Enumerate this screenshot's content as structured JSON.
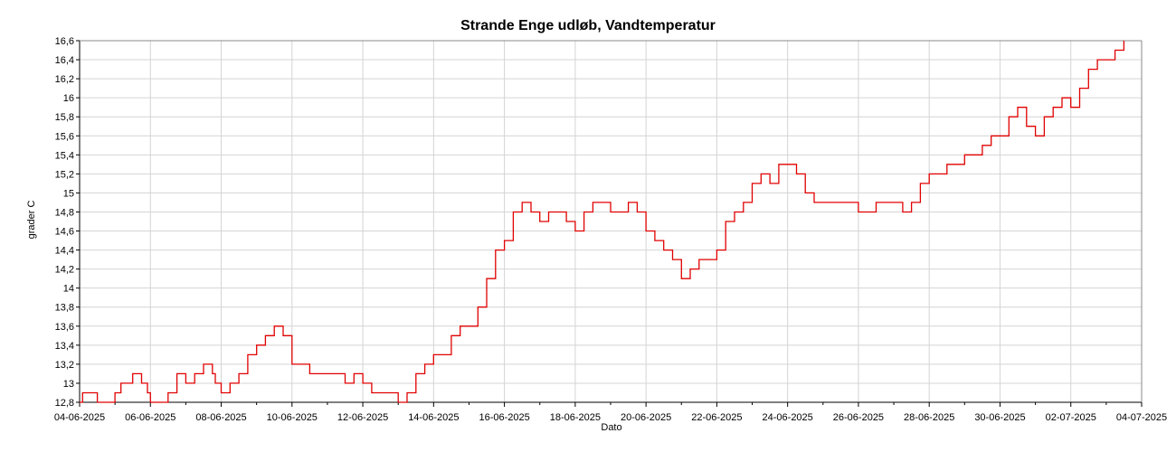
{
  "chart_data": {
    "type": "line",
    "title": "Strande Enge udløb, Vandtemperatur",
    "xlabel": "Dato",
    "ylabel": "grader C",
    "xlim": [
      "2025-06-04",
      "2025-07-04"
    ],
    "ylim": [
      12.8,
      16.6
    ],
    "grid": true,
    "legend": "none",
    "x_tick_labels": [
      "04-06-2025",
      "06-06-2025",
      "08-06-2025",
      "10-06-2025",
      "12-06-2025",
      "14-06-2025",
      "16-06-2025",
      "18-06-2025",
      "20-06-2025",
      "22-06-2025",
      "24-06-2025",
      "26-06-2025",
      "28-06-2025",
      "30-06-2025",
      "02-07-2025",
      "04-07-2025"
    ],
    "y_tick_labels": [
      "12,8",
      "13",
      "13,2",
      "13,4",
      "13,6",
      "13,8",
      "14",
      "14,2",
      "14,4",
      "14,6",
      "14,8",
      "15",
      "15,2",
      "15,4",
      "15,6",
      "15,8",
      "16",
      "16,2",
      "16,4",
      "16,6"
    ],
    "line_color": "#e00000",
    "series": [
      {
        "x": [
          "2025-06-04 00:00",
          "2025-06-04 02:00",
          "2025-06-04 08:00",
          "2025-06-04 12:00",
          "2025-06-04 18:00",
          "2025-06-05 00:00",
          "2025-06-05 04:00",
          "2025-06-05 12:00",
          "2025-06-05 14:00",
          "2025-06-05 18:00",
          "2025-06-05 22:00",
          "2025-06-06 00:00",
          "2025-06-06 06:00",
          "2025-06-06 12:00",
          "2025-06-06 18:00",
          "2025-06-06 20:00",
          "2025-06-07 00:00",
          "2025-06-07 06:00",
          "2025-06-07 12:00",
          "2025-06-07 18:00",
          "2025-06-07 20:00",
          "2025-06-08 00:00",
          "2025-06-08 06:00",
          "2025-06-08 12:00",
          "2025-06-08 18:00",
          "2025-06-09 00:00",
          "2025-06-09 06:00",
          "2025-06-09 12:00",
          "2025-06-09 14:00",
          "2025-06-09 18:00",
          "2025-06-10 00:00",
          "2025-06-10 12:00",
          "2025-06-11 00:00",
          "2025-06-11 06:00",
          "2025-06-11 12:00",
          "2025-06-11 18:00",
          "2025-06-12 00:00",
          "2025-06-12 06:00",
          "2025-06-12 12:00",
          "2025-06-12 18:00",
          "2025-06-13 00:00",
          "2025-06-13 06:00",
          "2025-06-13 12:00",
          "2025-06-13 18:00",
          "2025-06-14 00:00",
          "2025-06-14 06:00",
          "2025-06-14 12:00",
          "2025-06-14 18:00",
          "2025-06-15 00:00",
          "2025-06-15 06:00",
          "2025-06-15 12:00",
          "2025-06-15 18:00",
          "2025-06-16 00:00",
          "2025-06-16 06:00",
          "2025-06-16 12:00",
          "2025-06-16 18:00",
          "2025-06-17 00:00",
          "2025-06-17 06:00",
          "2025-06-17 12:00",
          "2025-06-17 18:00",
          "2025-06-18 00:00",
          "2025-06-18 06:00",
          "2025-06-18 12:00",
          "2025-06-18 18:00",
          "2025-06-19 00:00",
          "2025-06-19 06:00",
          "2025-06-19 12:00",
          "2025-06-19 18:00",
          "2025-06-20 00:00",
          "2025-06-20 06:00",
          "2025-06-20 12:00",
          "2025-06-20 18:00",
          "2025-06-21 00:00",
          "2025-06-21 06:00",
          "2025-06-21 12:00",
          "2025-06-21 18:00",
          "2025-06-22 00:00",
          "2025-06-22 06:00",
          "2025-06-22 12:00",
          "2025-06-22 18:00",
          "2025-06-23 00:00",
          "2025-06-23 06:00",
          "2025-06-23 12:00",
          "2025-06-23 18:00",
          "2025-06-24 00:00",
          "2025-06-24 06:00",
          "2025-06-24 12:00",
          "2025-06-24 18:00",
          "2025-06-25 00:00",
          "2025-06-25 12:00",
          "2025-06-26 00:00",
          "2025-06-26 12:00",
          "2025-06-27 00:00",
          "2025-06-27 06:00",
          "2025-06-27 12:00",
          "2025-06-27 18:00",
          "2025-06-28 00:00",
          "2025-06-28 12:00",
          "2025-06-29 00:00",
          "2025-06-29 06:00",
          "2025-06-29 12:00",
          "2025-06-29 18:00",
          "2025-06-30 00:00",
          "2025-06-30 06:00",
          "2025-06-30 12:00",
          "2025-06-30 18:00",
          "2025-07-01 00:00",
          "2025-07-01 06:00",
          "2025-07-01 12:00",
          "2025-07-01 18:00",
          "2025-07-02 00:00",
          "2025-07-02 06:00",
          "2025-07-02 12:00",
          "2025-07-02 18:00",
          "2025-07-03 00:00",
          "2025-07-03 06:00",
          "2025-07-03 12:00"
        ],
        "y": [
          12.8,
          12.9,
          12.9,
          12.8,
          12.8,
          12.9,
          13.0,
          13.1,
          13.1,
          13.0,
          12.9,
          12.8,
          12.8,
          12.9,
          13.1,
          13.1,
          13.0,
          13.1,
          13.2,
          13.1,
          13.0,
          12.9,
          13.0,
          13.1,
          13.3,
          13.4,
          13.5,
          13.6,
          13.6,
          13.5,
          13.2,
          13.1,
          13.1,
          13.1,
          13.0,
          13.1,
          13.0,
          12.9,
          12.9,
          12.9,
          12.8,
          12.9,
          13.1,
          13.2,
          13.3,
          13.3,
          13.5,
          13.6,
          13.6,
          13.8,
          14.1,
          14.4,
          14.5,
          14.8,
          14.9,
          14.8,
          14.7,
          14.8,
          14.8,
          14.7,
          14.6,
          14.8,
          14.9,
          14.9,
          14.8,
          14.8,
          14.9,
          14.8,
          14.6,
          14.5,
          14.4,
          14.3,
          14.1,
          14.2,
          14.3,
          14.3,
          14.4,
          14.7,
          14.8,
          14.9,
          15.1,
          15.2,
          15.1,
          15.3,
          15.3,
          15.2,
          15.0,
          14.9,
          14.9,
          14.9,
          14.8,
          14.9,
          14.9,
          14.8,
          14.9,
          15.1,
          15.2,
          15.3,
          15.4,
          15.4,
          15.5,
          15.6,
          15.6,
          15.8,
          15.9,
          15.7,
          15.6,
          15.8,
          15.9,
          16.0,
          15.9,
          16.1,
          16.3,
          16.4,
          16.4,
          16.5,
          16.6
        ]
      }
    ]
  }
}
